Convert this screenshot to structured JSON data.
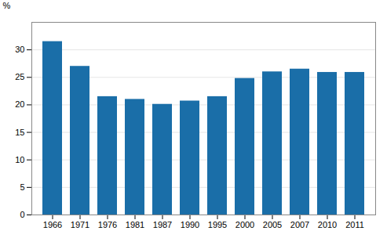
{
  "chart_data": {
    "type": "bar",
    "categories": [
      "1966",
      "1971",
      "1976",
      "1981",
      "1987",
      "1990",
      "1995",
      "2000",
      "2005",
      "2007",
      "2010",
      "2011"
    ],
    "values": [
      31.5,
      27.0,
      21.5,
      21.0,
      20.1,
      20.7,
      21.5,
      24.8,
      26.0,
      26.5,
      25.9,
      25.9
    ],
    "color": "#1a6ea8",
    "ylim": [
      0,
      35
    ],
    "yticks": [
      0,
      5,
      10,
      15,
      20,
      25,
      30
    ],
    "ylabel": "%",
    "grid": true
  }
}
